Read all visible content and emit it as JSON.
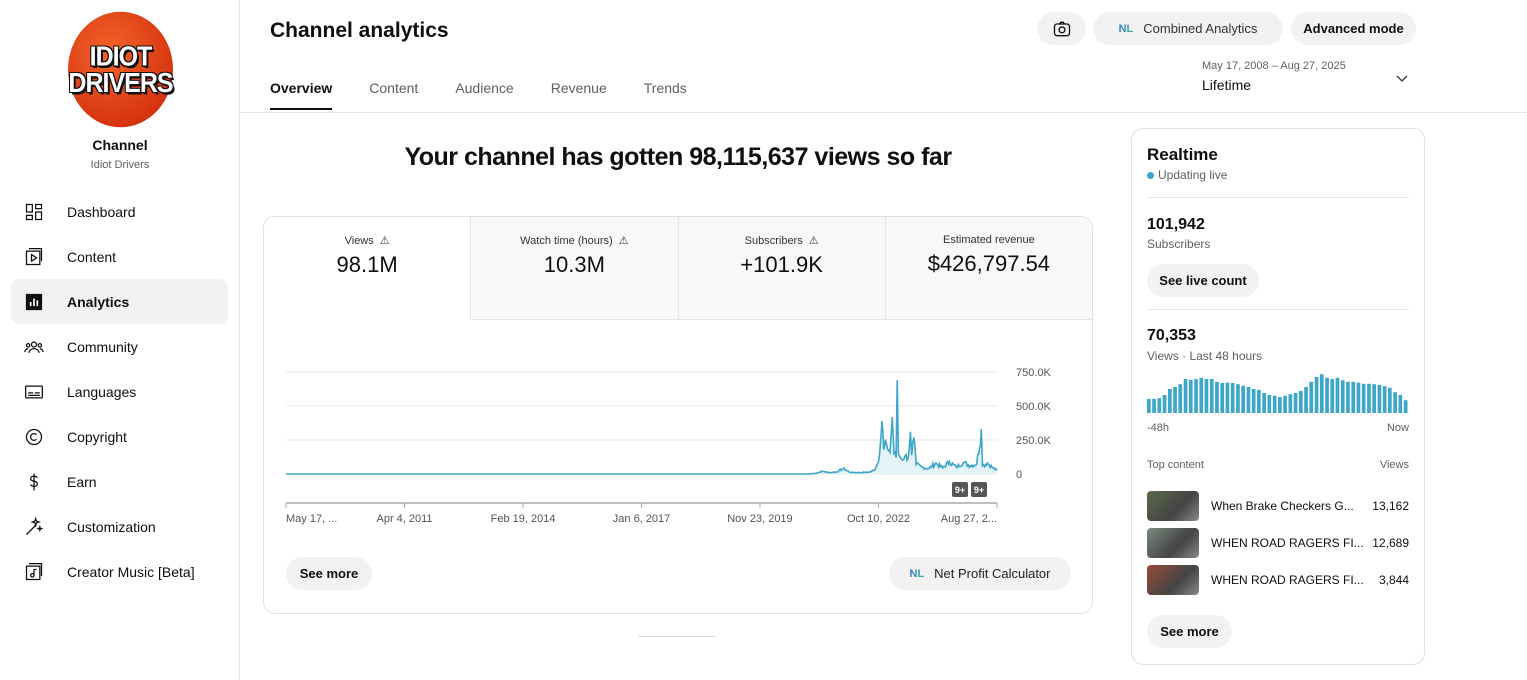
{
  "channel": {
    "logo_text": [
      "IDIOT",
      "DRIVERS"
    ],
    "title": "Channel",
    "name": "Idiot Drivers"
  },
  "sidebar": {
    "items": [
      {
        "label": "Dashboard",
        "icon": "dashboard-icon"
      },
      {
        "label": "Content",
        "icon": "content-icon"
      },
      {
        "label": "Analytics",
        "icon": "analytics-icon",
        "active": true
      },
      {
        "label": "Community",
        "icon": "community-icon"
      },
      {
        "label": "Languages",
        "icon": "languages-icon"
      },
      {
        "label": "Copyright",
        "icon": "copyright-icon"
      },
      {
        "label": "Earn",
        "icon": "earn-icon"
      },
      {
        "label": "Customization",
        "icon": "customization-icon"
      },
      {
        "label": "Creator Music [Beta]",
        "icon": "music-icon"
      }
    ]
  },
  "header": {
    "title": "Channel analytics",
    "tabs": [
      "Overview",
      "Content",
      "Audience",
      "Revenue",
      "Trends"
    ],
    "active_tab": "Overview",
    "combined_label": "Combined Analytics",
    "advanced_label": "Advanced mode",
    "date_range": "May 17, 2008 – Aug 27, 2025",
    "period": "Lifetime"
  },
  "main": {
    "headline": "Your channel has gotten 98,115,637 views so far",
    "metrics": [
      {
        "label": "Views",
        "value": "98.1M",
        "warning": true
      },
      {
        "label": "Watch time (hours)",
        "value": "10.3M",
        "warning": true
      },
      {
        "label": "Subscribers",
        "value": "+101.9K",
        "warning": true
      },
      {
        "label": "Estimated revenue",
        "value": "$426,797.54",
        "warning": false
      }
    ],
    "see_more": "See more",
    "calculator_label": "Net Profit Calculator",
    "badges": [
      "9+",
      "9+"
    ]
  },
  "chart_data": {
    "type": "line",
    "series_color": "#3ea6c9",
    "ylim": [
      0,
      750000
    ],
    "y_ticks": [
      {
        "v": 0,
        "label": "0"
      },
      {
        "v": 250000,
        "label": "250.0K"
      },
      {
        "v": 500000,
        "label": "500.0K"
      },
      {
        "v": 750000,
        "label": "750.0K"
      }
    ],
    "x_ticks": [
      {
        "d": "2008-05-17",
        "label": "May 17, ..."
      },
      {
        "d": "2011-04-04",
        "label": "Apr 4, 2011"
      },
      {
        "d": "2014-02-19",
        "label": "Feb 19, 2014"
      },
      {
        "d": "2017-01-06",
        "label": "Jan 6, 2017"
      },
      {
        "d": "2019-11-23",
        "label": "Nov 23, 2019"
      },
      {
        "d": "2022-10-10",
        "label": "Oct 10, 2022"
      },
      {
        "d": "2025-08-27",
        "label": "Aug 27, 2..."
      }
    ],
    "xlim": [
      "2008-05-17",
      "2025-08-27"
    ],
    "points": [
      [
        "2008-05-17",
        0
      ],
      [
        "2021-02-01",
        0
      ],
      [
        "2021-04-01",
        5000
      ],
      [
        "2021-06-01",
        20000
      ],
      [
        "2021-08-01",
        10000
      ],
      [
        "2021-10-01",
        15000
      ],
      [
        "2021-12-01",
        40000
      ],
      [
        "2022-02-01",
        12000
      ],
      [
        "2022-05-01",
        10000
      ],
      [
        "2022-08-01",
        15000
      ],
      [
        "2022-09-15",
        40000
      ],
      [
        "2022-10-20",
        150000
      ],
      [
        "2022-11-10",
        390000
      ],
      [
        "2022-11-25",
        180000
      ],
      [
        "2022-12-20",
        220000
      ],
      [
        "2023-01-20",
        160000
      ],
      [
        "2023-02-10",
        420000
      ],
      [
        "2023-02-25",
        150000
      ],
      [
        "2023-03-15",
        120000
      ],
      [
        "2023-03-25",
        690000
      ],
      [
        "2023-04-05",
        150000
      ],
      [
        "2023-05-01",
        110000
      ],
      [
        "2023-06-01",
        130000
      ],
      [
        "2023-07-01",
        120000
      ],
      [
        "2023-07-20",
        310000
      ],
      [
        "2023-08-01",
        140000
      ],
      [
        "2023-08-20",
        270000
      ],
      [
        "2023-09-10",
        70000
      ],
      [
        "2023-11-01",
        50000
      ],
      [
        "2024-01-01",
        40000
      ],
      [
        "2024-03-01",
        80000
      ],
      [
        "2024-05-01",
        45000
      ],
      [
        "2024-07-01",
        90000
      ],
      [
        "2024-09-01",
        50000
      ],
      [
        "2024-11-01",
        85000
      ],
      [
        "2025-01-01",
        60000
      ],
      [
        "2025-03-01",
        75000
      ],
      [
        "2025-04-10",
        330000
      ],
      [
        "2025-04-20",
        60000
      ],
      [
        "2025-06-01",
        80000
      ],
      [
        "2025-07-15",
        50000
      ],
      [
        "2025-08-27",
        25000
      ]
    ]
  },
  "realtime": {
    "title": "Realtime",
    "status": "Updating live",
    "subscribers": "101,942",
    "subscribers_label": "Subscribers",
    "live_count_label": "See live count",
    "views": "70,353",
    "views_label": "Views · Last 48 hours",
    "start_label": "-48h",
    "end_label": "Now",
    "hourly_relative": [
      0.35,
      0.35,
      0.37,
      0.45,
      0.6,
      0.65,
      0.72,
      0.85,
      0.83,
      0.85,
      0.88,
      0.85,
      0.85,
      0.78,
      0.75,
      0.76,
      0.75,
      0.72,
      0.68,
      0.65,
      0.6,
      0.58,
      0.5,
      0.45,
      0.43,
      0.4,
      0.43,
      0.47,
      0.5,
      0.55,
      0.65,
      0.78,
      0.9,
      0.97,
      0.88,
      0.85,
      0.88,
      0.82,
      0.78,
      0.78,
      0.76,
      0.73,
      0.73,
      0.72,
      0.7,
      0.67,
      0.63,
      0.52,
      0.45,
      0.32
    ],
    "top_content_label": "Top content",
    "views_col": "Views",
    "top_content": [
      {
        "title": "When Brake Checkers G...",
        "views": "13,162"
      },
      {
        "title": "WHEN ROAD RAGERS FI...",
        "views": "12,689"
      },
      {
        "title": "WHEN ROAD RAGERS FI...",
        "views": "3,844"
      }
    ],
    "see_more": "See more"
  }
}
